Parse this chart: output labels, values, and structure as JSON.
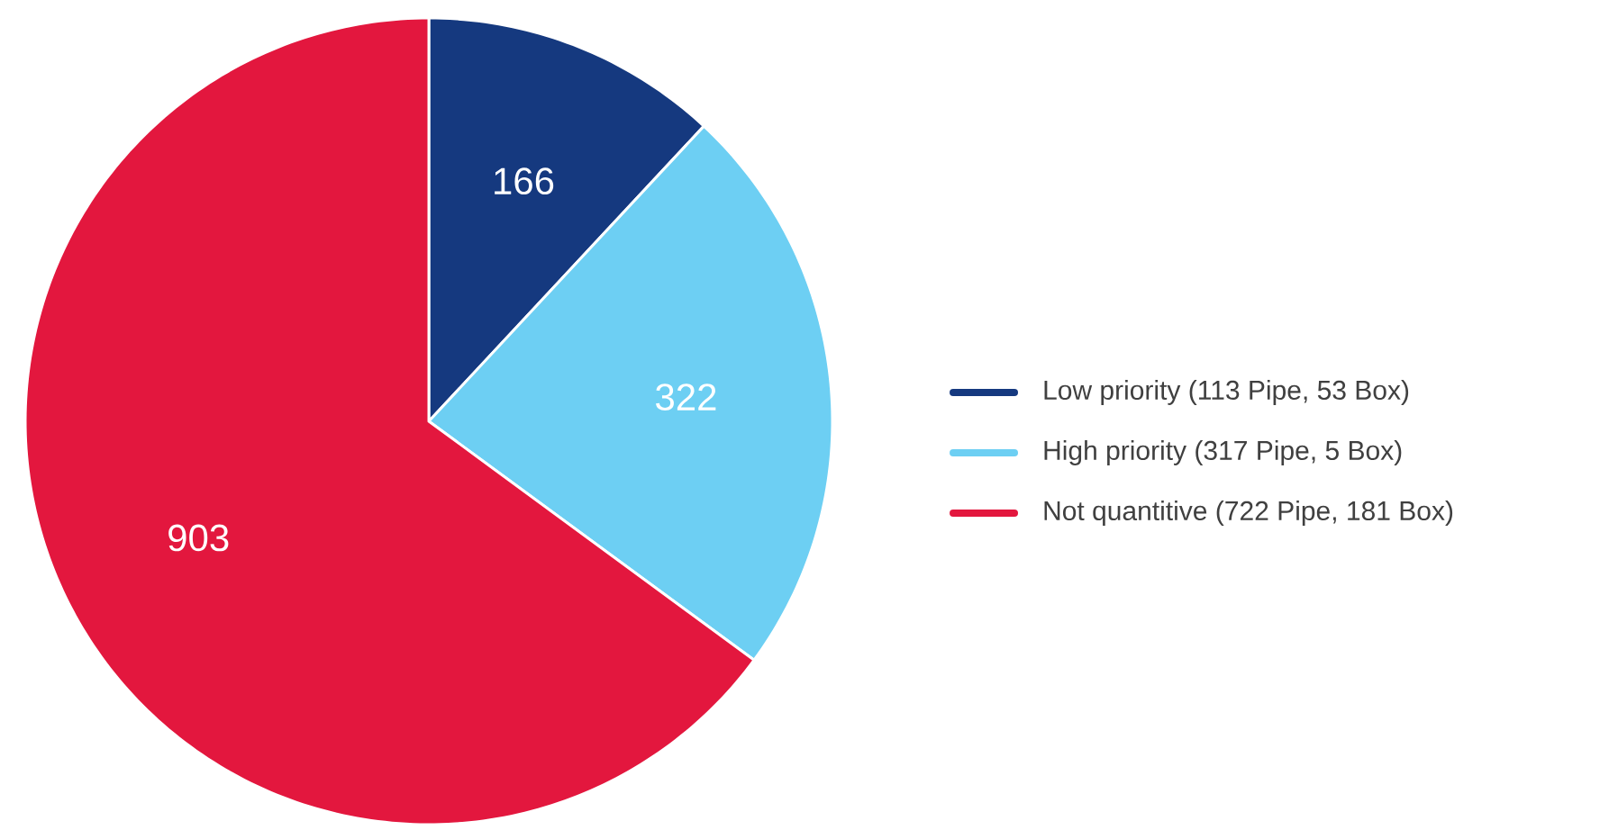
{
  "chart_data": {
    "type": "pie",
    "categories": [
      "Low priority (113 Pipe, 53 Box)",
      "High priority (317 Pipe, 5 Box)",
      "Not quantitive (722 Pipe, 181 Box)"
    ],
    "values": [
      166,
      322,
      903
    ],
    "colors": [
      "#15397f",
      "#6dcff3",
      "#e3173e"
    ],
    "data_labels": true,
    "legend": "right"
  }
}
